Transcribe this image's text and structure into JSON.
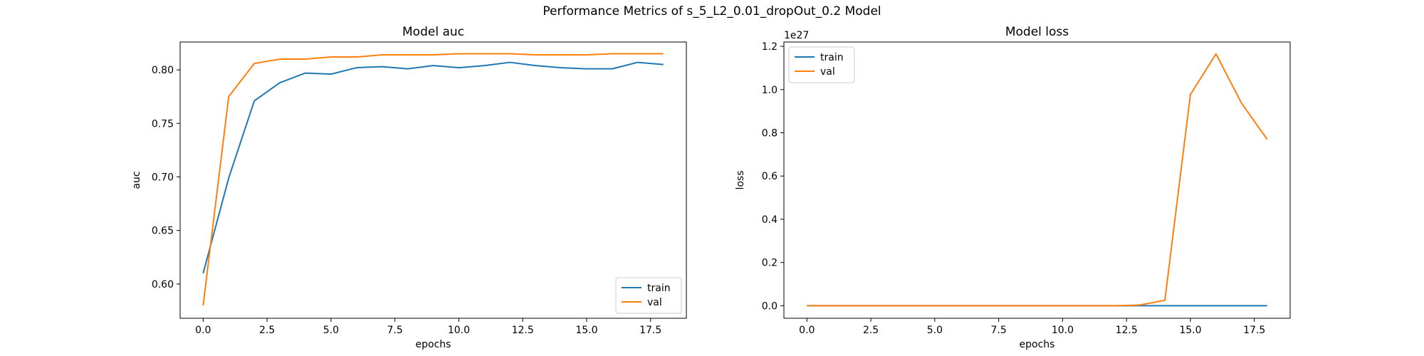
{
  "figure": {
    "suptitle": "Performance Metrics of s_5_L2_0.01_dropOut_0.2 Model"
  },
  "chart_data": [
    {
      "type": "line",
      "title": "Model auc",
      "xlabel": "epochs",
      "ylabel": "auc",
      "xlim": [
        -0.9,
        18.9
      ],
      "ylim": [
        0.568,
        0.826
      ],
      "xticks": [
        0.0,
        2.5,
        5.0,
        7.5,
        10.0,
        12.5,
        15.0,
        17.5
      ],
      "xtick_labels": [
        "0.0",
        "2.5",
        "5.0",
        "7.5",
        "10.0",
        "12.5",
        "15.0",
        "17.5"
      ],
      "yticks": [
        0.6,
        0.65,
        0.7,
        0.75,
        0.8
      ],
      "ytick_labels": [
        "0.60",
        "0.65",
        "0.70",
        "0.75",
        "0.80"
      ],
      "legend_position": "lower-right",
      "grid": false,
      "x": [
        0,
        1,
        2,
        3,
        4,
        5,
        6,
        7,
        8,
        9,
        10,
        11,
        12,
        13,
        14,
        15,
        16,
        17,
        18
      ],
      "series": [
        {
          "name": "train",
          "color": "#1f77b4",
          "values": [
            0.61,
            0.699,
            0.771,
            0.788,
            0.797,
            0.796,
            0.802,
            0.803,
            0.801,
            0.804,
            0.802,
            0.804,
            0.807,
            0.804,
            0.802,
            0.801,
            0.801,
            0.807,
            0.805
          ]
        },
        {
          "name": "val",
          "color": "#ff7f0e",
          "values": [
            0.58,
            0.775,
            0.806,
            0.81,
            0.81,
            0.812,
            0.812,
            0.814,
            0.814,
            0.814,
            0.815,
            0.815,
            0.815,
            0.814,
            0.814,
            0.814,
            0.815,
            0.815,
            0.815
          ]
        }
      ]
    },
    {
      "type": "line",
      "title": "Model loss",
      "xlabel": "epochs",
      "ylabel": "loss",
      "offset_text": "1e27",
      "xlim": [
        -0.9,
        18.9
      ],
      "ylim": [
        -0.058,
        1.22
      ],
      "xticks": [
        0.0,
        2.5,
        5.0,
        7.5,
        10.0,
        12.5,
        15.0,
        17.5
      ],
      "xtick_labels": [
        "0.0",
        "2.5",
        "5.0",
        "7.5",
        "10.0",
        "12.5",
        "15.0",
        "17.5"
      ],
      "yticks": [
        0.0,
        0.2,
        0.4,
        0.6,
        0.8,
        1.0,
        1.2
      ],
      "ytick_labels": [
        "0.0",
        "0.2",
        "0.4",
        "0.6",
        "0.8",
        "1.0",
        "1.2"
      ],
      "legend_position": "upper-left",
      "grid": false,
      "x": [
        0,
        1,
        2,
        3,
        4,
        5,
        6,
        7,
        8,
        9,
        10,
        11,
        12,
        13,
        14,
        15,
        16,
        17,
        18
      ],
      "series": [
        {
          "name": "train",
          "color": "#1f77b4",
          "values": [
            0,
            0,
            0,
            0,
            0,
            0,
            0,
            0,
            0,
            0,
            0,
            0,
            0,
            0,
            0,
            0,
            0,
            0,
            0
          ]
        },
        {
          "name": "val",
          "color": "#ff7f0e",
          "values": [
            0,
            0,
            0,
            0,
            0,
            0,
            0,
            0,
            0,
            0,
            0,
            0,
            0,
            0.003,
            0.025,
            0.977,
            1.165,
            0.937,
            0.77
          ]
        }
      ]
    }
  ]
}
